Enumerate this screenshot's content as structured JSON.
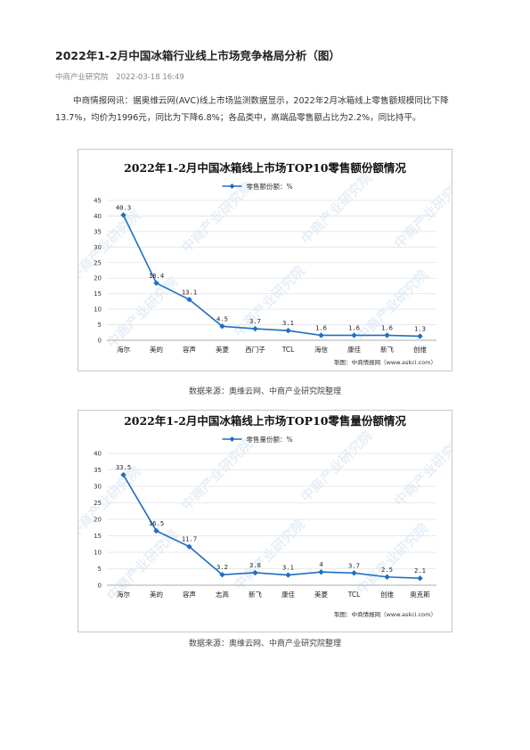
{
  "article": {
    "title": "2022年1-2月中国冰箱行业线上市场竞争格局分析（图）",
    "source": "中商产业研究院",
    "date": "2022-03-18 16:49",
    "paragraph": "中商情报网讯：据奥维云网(AVC)线上市场监测数据显示，2022年2月冰箱线上零售额规模同比下降13.7%，均价为1996元，同比为下降6.8%；各品类中，高端品零售额占比为2.2%，同比持平。"
  },
  "watermark": "中商产业研究院",
  "colors": {
    "line": "#1e6fc0",
    "grid": "#e3e3e3",
    "axis": "#555555",
    "watermark": "#d3e3f3"
  },
  "chart_data": [
    {
      "type": "line",
      "title": "2022年1-2月中国冰箱线上市场TOP10零售额份额情况",
      "legend": "零售额份额：%",
      "categories": [
        "海尔",
        "美的",
        "容声",
        "美菱",
        "西门子",
        "TCL",
        "海信",
        "康佳",
        "新飞",
        "创维"
      ],
      "values": [
        40.3,
        18.4,
        13.1,
        4.5,
        3.7,
        3.1,
        1.6,
        1.6,
        1.6,
        1.3
      ],
      "value_labels": [
        "40.3",
        "18.4",
        "13.1",
        "4.5",
        "3.7",
        "3.1",
        "1.6",
        "1.6",
        "1.6",
        "1.3"
      ],
      "yticks": [
        0,
        5,
        10,
        15,
        20,
        25,
        30,
        35,
        40,
        45
      ],
      "ylim": [
        0,
        45
      ],
      "grid": true,
      "legend_position": "top-center",
      "credit": "制图：中商情报网（www.askci.com）",
      "caption": "数据来源：奥维云网、中商产业研究院整理"
    },
    {
      "type": "line",
      "title": "2022年1-2月中国冰箱线上市场TOP10零售量份额情况",
      "legend": "零售量份额：%",
      "categories": [
        "海尔",
        "美的",
        "容声",
        "志高",
        "新飞",
        "康佳",
        "美菱",
        "TCL",
        "创维",
        "奥克斯"
      ],
      "values": [
        33.5,
        16.5,
        11.7,
        3.2,
        3.8,
        3.1,
        4,
        3.7,
        2.5,
        2.1
      ],
      "value_labels": [
        "33.5",
        "16.5",
        "11.7",
        "3.2",
        "3.8",
        "3.1",
        "4",
        "3.7",
        "2.5",
        "2.1"
      ],
      "yticks": [
        0,
        5,
        10,
        15,
        20,
        25,
        30,
        35,
        40
      ],
      "ylim": [
        0,
        40
      ],
      "grid": true,
      "legend_position": "top-center",
      "credit": "制图：中商情报网（www.askci.com）",
      "caption": "数据来源：奥维云网、中商产业研究院整理"
    }
  ]
}
